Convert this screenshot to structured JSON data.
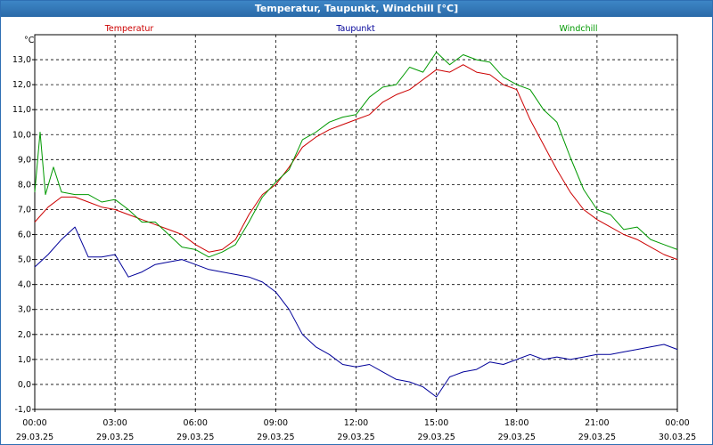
{
  "window": {
    "title": "Temperatur, Taupunkt, Windchill [°C]"
  },
  "chart_data": {
    "type": "line",
    "title": "Temperatur, Taupunkt, Windchill [°C]",
    "ylabel": "°C",
    "xlabel": "",
    "ylim": [
      -1.0,
      14.0
    ],
    "yticks": [
      -1.0,
      0.0,
      1.0,
      2.0,
      3.0,
      4.0,
      5.0,
      6.0,
      7.0,
      8.0,
      9.0,
      10.0,
      11.0,
      12.0,
      13.0
    ],
    "ytick_labels": [
      "-1,0",
      "0,0",
      "1,0",
      "2,0",
      "3,0",
      "4,0",
      "5,0",
      "6,0",
      "7,0",
      "8,0",
      "9,0",
      "10,0",
      "11,0",
      "12,0",
      "13,0"
    ],
    "xlim": [
      0,
      24
    ],
    "xticks": [
      {
        "x": 0,
        "time": "00:00",
        "date": "29.03.25"
      },
      {
        "x": 3,
        "time": "03:00",
        "date": "29.03.25"
      },
      {
        "x": 6,
        "time": "06:00",
        "date": "29.03.25"
      },
      {
        "x": 9,
        "time": "09:00",
        "date": "29.03.25"
      },
      {
        "x": 12,
        "time": "12:00",
        "date": "29.03.25"
      },
      {
        "x": 15,
        "time": "15:00",
        "date": "29.03.25"
      },
      {
        "x": 18,
        "time": "18:00",
        "date": "29.03.25"
      },
      {
        "x": 21,
        "time": "21:00",
        "date": "29.03.25"
      },
      {
        "x": 24,
        "time": "00:00",
        "date": "30.03.25"
      }
    ],
    "grid": true,
    "series": [
      {
        "name": "Temperatur",
        "color": "#cc0000",
        "legend_pos": "left",
        "x": [
          0,
          0.5,
          1,
          1.5,
          2,
          2.5,
          3,
          3.5,
          4,
          4.5,
          5,
          5.5,
          6,
          6.5,
          7,
          7.5,
          8,
          8.5,
          9,
          9.5,
          10,
          10.5,
          11,
          11.5,
          12,
          12.5,
          13,
          13.5,
          14,
          14.5,
          15,
          15.5,
          16,
          16.5,
          17,
          17.5,
          18,
          18.5,
          19,
          19.5,
          20,
          20.5,
          21,
          21.5,
          22,
          22.5,
          23,
          23.5,
          24
        ],
        "values": [
          6.5,
          7.1,
          7.5,
          7.5,
          7.3,
          7.1,
          7.0,
          6.8,
          6.6,
          6.4,
          6.2,
          6.0,
          5.6,
          5.3,
          5.4,
          5.8,
          6.8,
          7.6,
          8.0,
          8.7,
          9.5,
          9.9,
          10.2,
          10.4,
          10.6,
          10.8,
          11.3,
          11.6,
          11.8,
          12.2,
          12.6,
          12.5,
          12.8,
          12.5,
          12.4,
          12.0,
          11.8,
          10.6,
          9.6,
          8.6,
          7.7,
          7.0,
          6.6,
          6.3,
          6.0,
          5.8,
          5.5,
          5.2,
          5.0
        ]
      },
      {
        "name": "Taupunkt",
        "color": "#000099",
        "legend_pos": "center",
        "x": [
          0,
          0.5,
          1,
          1.5,
          2,
          2.5,
          3,
          3.5,
          4,
          4.5,
          5,
          5.5,
          6,
          6.5,
          7,
          7.5,
          8,
          8.5,
          9,
          9.5,
          10,
          10.5,
          11,
          11.5,
          12,
          12.5,
          13,
          13.5,
          14,
          14.5,
          15,
          15.5,
          16,
          16.5,
          17,
          17.5,
          18,
          18.5,
          19,
          19.5,
          20,
          20.5,
          21,
          21.5,
          22,
          22.5,
          23,
          23.5,
          24
        ],
        "values": [
          4.7,
          5.2,
          5.8,
          6.3,
          5.1,
          5.1,
          5.2,
          4.3,
          4.5,
          4.8,
          4.9,
          5.0,
          4.8,
          4.6,
          4.5,
          4.4,
          4.3,
          4.1,
          3.7,
          3.0,
          2.0,
          1.5,
          1.2,
          0.8,
          0.7,
          0.8,
          0.5,
          0.2,
          0.1,
          -0.1,
          -0.5,
          0.3,
          0.5,
          0.6,
          0.9,
          0.8,
          1.0,
          1.2,
          1.0,
          1.1,
          1.0,
          1.1,
          1.2,
          1.2,
          1.3,
          1.4,
          1.5,
          1.6,
          1.4
        ]
      },
      {
        "name": "Windchill",
        "color": "#009900",
        "legend_pos": "right",
        "x": [
          0,
          0.2,
          0.4,
          0.7,
          1,
          1.5,
          2,
          2.5,
          3,
          3.5,
          4,
          4.5,
          5,
          5.5,
          6,
          6.5,
          7,
          7.5,
          8,
          8.5,
          9,
          9.5,
          10,
          10.5,
          11,
          11.5,
          12,
          12.5,
          13,
          13.5,
          14,
          14.5,
          15,
          15.5,
          16,
          16.5,
          17,
          17.5,
          18,
          18.5,
          19,
          19.5,
          20,
          20.5,
          21,
          21.5,
          22,
          22.5,
          23,
          23.5,
          24
        ],
        "values": [
          7.7,
          10.1,
          7.6,
          8.7,
          7.7,
          7.6,
          7.6,
          7.3,
          7.4,
          7.0,
          6.5,
          6.5,
          6.0,
          5.5,
          5.4,
          5.1,
          5.3,
          5.6,
          6.5,
          7.5,
          8.1,
          8.6,
          9.8,
          10.1,
          10.5,
          10.7,
          10.8,
          11.5,
          11.9,
          12.0,
          12.7,
          12.5,
          13.3,
          12.8,
          13.2,
          13.0,
          12.9,
          12.3,
          12.0,
          11.8,
          11.0,
          10.5,
          9.1,
          7.8,
          7.0,
          6.8,
          6.2,
          6.3,
          5.8,
          5.6,
          5.4
        ]
      }
    ]
  }
}
